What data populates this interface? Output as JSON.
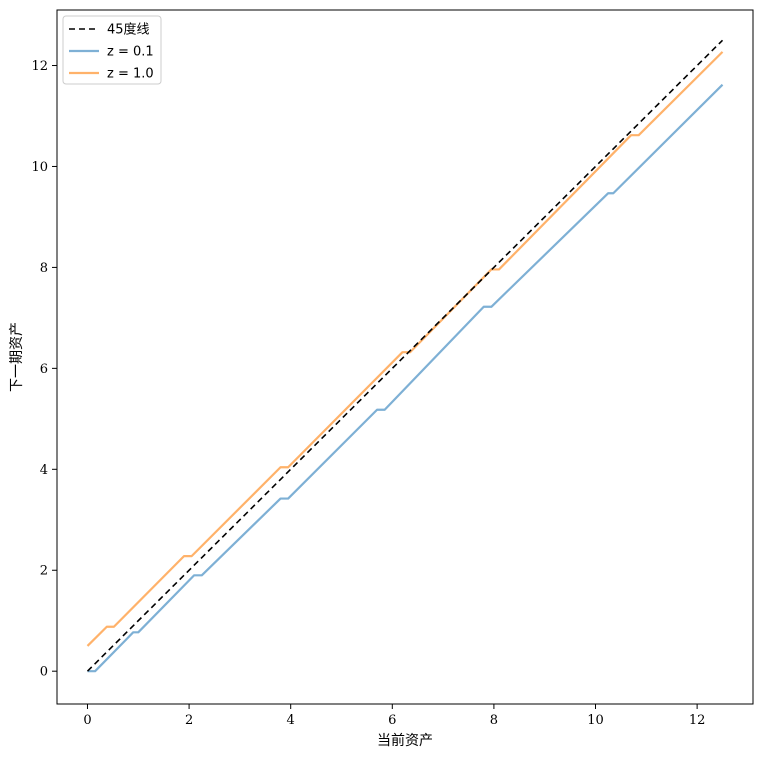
{
  "chart_data": {
    "type": "line",
    "xlabel": "当前资产",
    "ylabel": "下一期资产",
    "xlim": [
      -0.6,
      13.1
    ],
    "ylim": [
      -0.65,
      13.1
    ],
    "xticks": [
      0,
      2,
      4,
      6,
      8,
      10,
      12
    ],
    "yticks": [
      0,
      2,
      4,
      6,
      8,
      10,
      12
    ],
    "grid": false,
    "legend_position": "top-left",
    "series": [
      {
        "name": "45度线",
        "color": "#000000",
        "dash": true,
        "x": [
          0,
          12.5
        ],
        "y": [
          0,
          12.5
        ]
      },
      {
        "name": "z = 0.1",
        "color": "#7eb0d5",
        "dash": false,
        "x": [
          0,
          0.15,
          0.9,
          1.0,
          2.1,
          2.25,
          3.8,
          3.95,
          5.7,
          5.85,
          7.8,
          7.95,
          10.25,
          10.35,
          12.5
        ],
        "y": [
          0,
          0,
          0.77,
          0.77,
          1.9,
          1.9,
          3.42,
          3.42,
          5.18,
          5.18,
          7.22,
          7.22,
          9.47,
          9.47,
          11.62
        ]
      },
      {
        "name": "z = 1.0",
        "color": "#ffb26a",
        "dash": false,
        "x": [
          0,
          0.38,
          0.52,
          1.9,
          2.05,
          3.8,
          3.95,
          6.2,
          6.35,
          7.95,
          8.1,
          10.7,
          10.85,
          12.5
        ],
        "y": [
          0.5,
          0.88,
          0.88,
          2.28,
          2.28,
          4.04,
          4.04,
          6.32,
          6.32,
          7.96,
          7.96,
          10.62,
          10.62,
          12.27
        ]
      }
    ]
  }
}
